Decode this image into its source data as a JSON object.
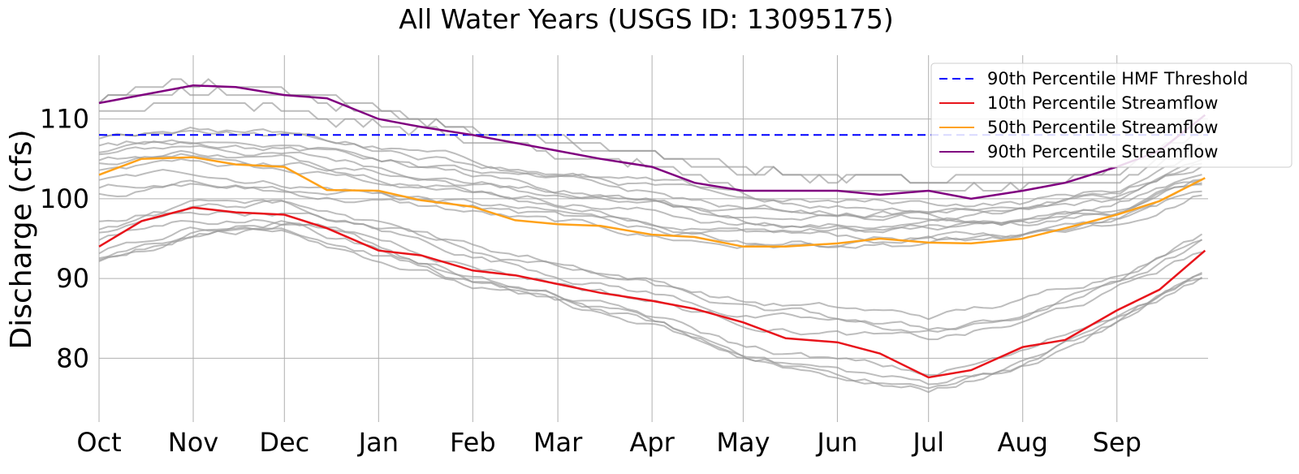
{
  "chart_data": {
    "type": "line",
    "title": "All Water Years (USGS ID: 13095175)",
    "xlabel": "",
    "ylabel": "Discharge (cfs)",
    "x_ticks": [
      "Oct",
      "Nov",
      "Dec",
      "Jan",
      "Feb",
      "Mar",
      "Apr",
      "May",
      "Jun",
      "Jul",
      "Aug",
      "Sep"
    ],
    "y_ticks": [
      80,
      90,
      100,
      110
    ],
    "ylim": [
      72,
      118
    ],
    "grid": true,
    "legend_position": "top-right",
    "colors": {
      "threshold": "#0000ff",
      "p10": "#e8141b",
      "p50": "#ffa21a",
      "p90": "#800080",
      "years": "#999999"
    },
    "threshold": {
      "name": "90th Percentile HMF Threshold",
      "value": 108
    },
    "series": [
      {
        "name": "10th Percentile Streamflow",
        "key": "p10",
        "x": [
          "Oct 1",
          "Oct 15",
          "Nov 1",
          "Nov 15",
          "Dec 1",
          "Dec 15",
          "Jan 1",
          "Jan 15",
          "Feb 1",
          "Feb 15",
          "Mar 1",
          "Mar 15",
          "Apr 1",
          "Apr 15",
          "May 1",
          "May 15",
          "Jun 1",
          "Jun 15",
          "Jul 1",
          "Jul 15",
          "Aug 1",
          "Aug 15",
          "Sep 1",
          "Sep 15",
          "Sep 30"
        ],
        "values": [
          94,
          97.2,
          98.9,
          98.3,
          98,
          96.3,
          93.5,
          92.9,
          91,
          90.4,
          89.3,
          88.2,
          87.2,
          86.2,
          84.5,
          82.5,
          82,
          80.6,
          77.6,
          78.5,
          81.4,
          82.3,
          86,
          88.6,
          93.5
        ]
      },
      {
        "name": "50th Percentile Streamflow",
        "key": "p50",
        "x": [
          "Oct 1",
          "Oct 15",
          "Nov 1",
          "Nov 15",
          "Dec 1",
          "Dec 15",
          "Jan 1",
          "Jan 15",
          "Feb 1",
          "Feb 15",
          "Mar 1",
          "Mar 15",
          "Apr 1",
          "Apr 15",
          "May 1",
          "May 15",
          "Jun 1",
          "Jun 15",
          "Jul 1",
          "Jul 15",
          "Aug 1",
          "Aug 15",
          "Sep 1",
          "Sep 15",
          "Sep 30"
        ],
        "values": [
          103,
          105,
          105.2,
          104.3,
          104,
          101.1,
          101,
          99.8,
          99,
          97.3,
          96.8,
          96.6,
          95.5,
          95.2,
          94,
          94,
          94.4,
          95,
          94.5,
          94.4,
          95,
          96.3,
          98,
          99.7,
          102.6
        ]
      },
      {
        "name": "90th Percentile Streamflow",
        "key": "p90",
        "x": [
          "Oct 1",
          "Oct 15",
          "Nov 1",
          "Nov 15",
          "Dec 1",
          "Dec 15",
          "Jan 1",
          "Jan 15",
          "Feb 1",
          "Feb 15",
          "Mar 1",
          "Mar 15",
          "Apr 1",
          "Apr 15",
          "May 1",
          "May 15",
          "Jun 1",
          "Jun 15",
          "Jul 1",
          "Jul 15",
          "Aug 1",
          "Aug 15",
          "Sep 1",
          "Sep 15",
          "Sep 30"
        ],
        "values": [
          112,
          113,
          114.2,
          114,
          113,
          112.6,
          110,
          109,
          108,
          107,
          106,
          105,
          104,
          102,
          101,
          101,
          101,
          100.5,
          101,
          100,
          101,
          102,
          104,
          106,
          110.5
        ]
      }
    ]
  }
}
